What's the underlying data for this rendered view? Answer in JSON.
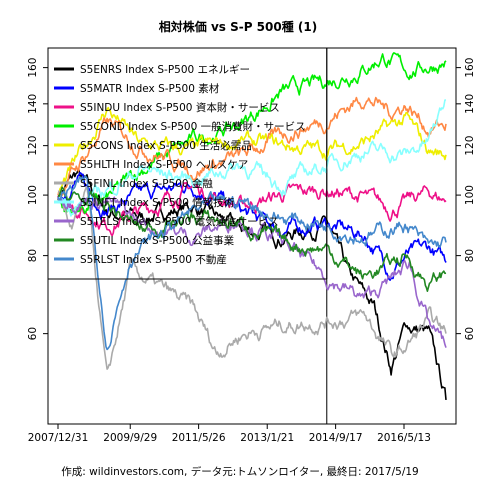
{
  "chart_data": {
    "type": "line",
    "title": "相対株価 vs S-P 500種 (1)",
    "caption": "作成: wildinvestors.com, データ元:トムソンロイター, 最終日: 2017/5/19",
    "x_tick_labels": [
      "2007/12/31",
      "2009/9/29",
      "2011/5/26",
      "2013/1/21",
      "2014/9/17",
      "2016/5/13"
    ],
    "x_tick_dates": [
      "2007-12-31",
      "2009-09-29",
      "2011-05-26",
      "2013-01-21",
      "2014-09-17",
      "2016-05-13"
    ],
    "x_range": [
      "2007-12-31",
      "2017-05-19"
    ],
    "y_scale": "log",
    "y_ticks": [
      60,
      80,
      100,
      120,
      140,
      160
    ],
    "y_range": [
      43,
      172
    ],
    "marker_date": "2014-07-01",
    "legend_position": "top-left",
    "series": [
      {
        "name": "S5ENRS Index S-P500 エネルギー",
        "color": "#000000",
        "points": [
          [
            "2007-12-31",
            100
          ],
          [
            "2008-06-15",
            108
          ],
          [
            "2009-03-09",
            94
          ],
          [
            "2010-01-01",
            92
          ],
          [
            "2011-04-01",
            96
          ],
          [
            "2012-06-01",
            88
          ],
          [
            "2013-06-01",
            86
          ],
          [
            "2014-07-01",
            90
          ],
          [
            "2015-01-15",
            74
          ],
          [
            "2015-08-24",
            66
          ],
          [
            "2016-01-20",
            53
          ],
          [
            "2016-06-01",
            62
          ],
          [
            "2016-12-15",
            60
          ],
          [
            "2017-05-19",
            47
          ]
        ]
      },
      {
        "name": "S5MATR Index S-P500 素材",
        "color": "#0000ff",
        "points": [
          [
            "2007-12-31",
            100
          ],
          [
            "2008-06-15",
            106
          ],
          [
            "2009-03-09",
            95
          ],
          [
            "2010-01-01",
            100
          ],
          [
            "2011-04-01",
            104
          ],
          [
            "2012-06-01",
            94
          ],
          [
            "2013-06-01",
            88
          ],
          [
            "2014-07-01",
            90
          ],
          [
            "2015-06-01",
            86
          ],
          [
            "2016-01-20",
            76
          ],
          [
            "2016-06-01",
            80
          ],
          [
            "2016-12-15",
            82
          ],
          [
            "2017-05-19",
            78
          ]
        ]
      },
      {
        "name": "S5INDU Index S-P500 資本財・サービス",
        "color": "#ee1188",
        "points": [
          [
            "2007-12-31",
            100
          ],
          [
            "2009-03-09",
            90
          ],
          [
            "2010-01-01",
            94
          ],
          [
            "2011-04-01",
            103
          ],
          [
            "2012-06-01",
            96
          ],
          [
            "2013-06-01",
            100
          ],
          [
            "2014-07-01",
            102
          ],
          [
            "2015-06-01",
            99
          ],
          [
            "2016-01-20",
            95
          ],
          [
            "2016-12-15",
            101
          ],
          [
            "2017-05-19",
            98
          ]
        ]
      },
      {
        "name": "S5COND Index S-P500 一般消費財・サービス",
        "color": "#00ee00",
        "points": [
          [
            "2007-12-31",
            100
          ],
          [
            "2008-03-15",
            94
          ],
          [
            "2009-03-09",
            98
          ],
          [
            "2010-01-01",
            110
          ],
          [
            "2011-04-01",
            122
          ],
          [
            "2012-06-01",
            130
          ],
          [
            "2013-06-01",
            146
          ],
          [
            "2014-07-01",
            152
          ],
          [
            "2015-06-01",
            160
          ],
          [
            "2015-11-15",
            167
          ],
          [
            "2016-06-01",
            158
          ],
          [
            "2016-12-15",
            161
          ],
          [
            "2017-05-19",
            164
          ]
        ]
      },
      {
        "name": "S5CONS Index S-P500 生活必需品",
        "color": "#eeee00",
        "points": [
          [
            "2007-12-31",
            100
          ],
          [
            "2009-03-09",
            138
          ],
          [
            "2010-01-01",
            120
          ],
          [
            "2011-04-01",
            118
          ],
          [
            "2012-06-01",
            122
          ],
          [
            "2013-06-01",
            120
          ],
          [
            "2014-07-01",
            118
          ],
          [
            "2015-06-01",
            122
          ],
          [
            "2016-06-01",
            132
          ],
          [
            "2016-12-15",
            118
          ],
          [
            "2017-05-19",
            116
          ]
        ]
      },
      {
        "name": "S5HLTH Index S-P500 ヘルスケア",
        "color": "#ff8844",
        "points": [
          [
            "2007-12-31",
            100
          ],
          [
            "2009-03-09",
            130
          ],
          [
            "2010-01-01",
            120
          ],
          [
            "2011-04-01",
            110
          ],
          [
            "2012-06-01",
            115
          ],
          [
            "2013-06-01",
            125
          ],
          [
            "2014-07-01",
            132
          ],
          [
            "2015-06-01",
            144
          ],
          [
            "2016-01-20",
            136
          ],
          [
            "2016-06-01",
            140
          ],
          [
            "2016-12-15",
            128
          ],
          [
            "2017-05-19",
            130
          ]
        ]
      },
      {
        "name": "S5FINL Index S-P500 金融",
        "color": "#aaaaaa",
        "points": [
          [
            "2007-12-31",
            100
          ],
          [
            "2008-05-01",
            88
          ],
          [
            "2008-09-15",
            100
          ],
          [
            "2009-03-09",
            50
          ],
          [
            "2009-10-01",
            76
          ],
          [
            "2010-04-15",
            72
          ],
          [
            "2011-04-01",
            66
          ],
          [
            "2011-11-01",
            56
          ],
          [
            "2012-06-01",
            60
          ],
          [
            "2013-06-01",
            62
          ],
          [
            "2014-07-01",
            63
          ],
          [
            "2015-06-01",
            64
          ],
          [
            "2016-02-11",
            55
          ],
          [
            "2016-06-01",
            57
          ],
          [
            "2016-12-15",
            63
          ],
          [
            "2017-05-19",
            60
          ]
        ]
      },
      {
        "name": "S5INFT Index S-P500 情報技術",
        "color": "#88ffff",
        "points": [
          [
            "2007-12-31",
            100
          ],
          [
            "2008-06-15",
            96
          ],
          [
            "2009-03-09",
            102
          ],
          [
            "2010-01-01",
            110
          ],
          [
            "2011-04-01",
            106
          ],
          [
            "2012-06-01",
            112
          ],
          [
            "2013-06-01",
            104
          ],
          [
            "2014-07-01",
            112
          ],
          [
            "2015-06-01",
            118
          ],
          [
            "2016-06-01",
            116
          ],
          [
            "2016-12-15",
            122
          ],
          [
            "2017-05-19",
            142
          ]
        ]
      },
      {
        "name": "S5TELS Index S-P500 電気通信サービス",
        "color": "#9966cc",
        "points": [
          [
            "2007-12-31",
            100
          ],
          [
            "2009-03-09",
            98
          ],
          [
            "2010-01-01",
            90
          ],
          [
            "2011-04-01",
            86
          ],
          [
            "2012-06-01",
            92
          ],
          [
            "2013-06-01",
            84
          ],
          [
            "2014-07-01",
            74
          ],
          [
            "2015-06-01",
            68
          ],
          [
            "2016-03-01",
            74
          ],
          [
            "2016-07-01",
            78
          ],
          [
            "2016-12-15",
            62
          ],
          [
            "2017-05-19",
            57
          ]
        ]
      },
      {
        "name": "S5UTIL Index S-P500 公益事業",
        "color": "#228822",
        "points": [
          [
            "2007-12-31",
            100
          ],
          [
            "2009-03-09",
            96
          ],
          [
            "2010-01-01",
            88
          ],
          [
            "2011-04-01",
            92
          ],
          [
            "2012-06-01",
            90
          ],
          [
            "2013-06-01",
            84
          ],
          [
            "2014-07-01",
            82
          ],
          [
            "2015-06-01",
            74
          ],
          [
            "2016-06-01",
            80
          ],
          [
            "2016-12-15",
            72
          ],
          [
            "2017-05-19",
            75
          ]
        ]
      },
      {
        "name": "S5RLST Index S-P500 不動産",
        "color": "#4488cc",
        "points": [
          [
            "2007-12-31",
            100
          ],
          [
            "2008-09-15",
            104
          ],
          [
            "2009-03-09",
            58
          ],
          [
            "2009-10-01",
            80
          ],
          [
            "2010-06-01",
            86
          ],
          [
            "2011-04-01",
            94
          ],
          [
            "2012-06-01",
            98
          ],
          [
            "2013-06-01",
            92
          ],
          [
            "2014-07-01",
            90
          ],
          [
            "2015-06-01",
            86
          ],
          [
            "2016-06-01",
            90
          ],
          [
            "2016-12-15",
            82
          ],
          [
            "2017-05-19",
            84
          ]
        ]
      }
    ]
  }
}
